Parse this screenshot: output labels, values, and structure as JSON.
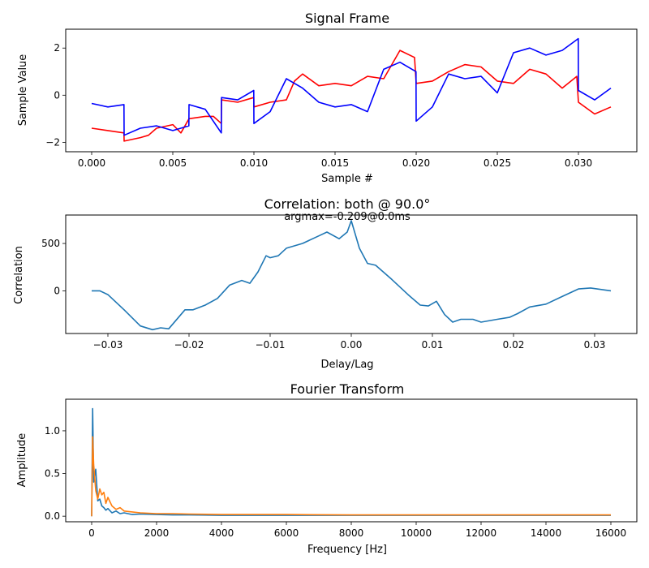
{
  "chart_data": [
    {
      "type": "line",
      "title": "Signal Frame",
      "xlabel": "Sample #",
      "ylabel": "Sample Value",
      "xlim": [
        -0.0016,
        0.0336
      ],
      "ylim": [
        -2.4,
        2.8
      ],
      "xticks": [
        0.0,
        0.005,
        0.01,
        0.015,
        0.02,
        0.025,
        0.03
      ],
      "xtick_labels": [
        "0.000",
        "0.005",
        "0.010",
        "0.015",
        "0.020",
        "0.025",
        "0.030"
      ],
      "yticks": [
        -2,
        0,
        2
      ],
      "ytick_labels": [
        "−2",
        "0",
        "2"
      ],
      "grid": false,
      "series": [
        {
          "color": "#ff0000",
          "x": [
            0.0,
            0.001,
            0.00199,
            0.002,
            0.003,
            0.0035,
            0.004,
            0.005,
            0.0055,
            0.006,
            0.007,
            0.0075,
            0.00799,
            0.008,
            0.009,
            0.00999,
            0.01,
            0.011,
            0.012,
            0.0125,
            0.013,
            0.014,
            0.015,
            0.016,
            0.017,
            0.018,
            0.019,
            0.0199,
            0.02,
            0.021,
            0.022,
            0.023,
            0.024,
            0.025,
            0.026,
            0.027,
            0.028,
            0.029,
            0.0299,
            0.03,
            0.031,
            0.032
          ],
          "y": [
            -1.4,
            -1.5,
            -1.6,
            -1.95,
            -1.8,
            -1.7,
            -1.4,
            -1.25,
            -1.6,
            -1.0,
            -0.9,
            -0.9,
            -1.2,
            -0.2,
            -0.3,
            -0.1,
            -0.5,
            -0.3,
            -0.2,
            0.6,
            0.9,
            0.4,
            0.5,
            0.4,
            0.8,
            0.7,
            1.9,
            1.6,
            0.5,
            0.6,
            1.0,
            1.3,
            1.2,
            0.6,
            0.5,
            1.1,
            0.9,
            0.3,
            0.8,
            -0.3,
            -0.8,
            -0.5
          ]
        },
        {
          "color": "#0000ff",
          "x": [
            0.0,
            0.001,
            0.00199,
            0.002,
            0.003,
            0.004,
            0.005,
            0.00599,
            0.006,
            0.007,
            0.00799,
            0.008,
            0.009,
            0.00999,
            0.01,
            0.011,
            0.012,
            0.013,
            0.014,
            0.015,
            0.016,
            0.017,
            0.018,
            0.019,
            0.01999,
            0.02,
            0.021,
            0.022,
            0.023,
            0.024,
            0.025,
            0.026,
            0.027,
            0.028,
            0.029,
            0.02999,
            0.03,
            0.031,
            0.032
          ],
          "y": [
            -0.35,
            -0.5,
            -0.4,
            -1.7,
            -1.4,
            -1.3,
            -1.5,
            -1.3,
            -0.4,
            -0.6,
            -1.6,
            -0.1,
            -0.2,
            0.2,
            -1.2,
            -0.7,
            0.7,
            0.3,
            -0.3,
            -0.5,
            -0.4,
            -0.7,
            1.1,
            1.4,
            1.0,
            -1.1,
            -0.5,
            0.9,
            0.7,
            0.8,
            0.1,
            1.8,
            2.0,
            1.7,
            1.9,
            2.4,
            0.2,
            -0.2,
            0.3
          ]
        }
      ]
    },
    {
      "type": "line",
      "title": "Correlation: both @ 90.0°",
      "annotation": "argmax=-0.209@0.0ms",
      "xlabel": "Delay/Lag",
      "ylabel": "Correlation",
      "xlim": [
        -0.0352,
        0.0352
      ],
      "ylim": [
        -450,
        800
      ],
      "xticks": [
        -0.03,
        -0.02,
        -0.01,
        0.0,
        0.01,
        0.02,
        0.03
      ],
      "xtick_labels": [
        "−0.03",
        "−0.02",
        "−0.01",
        "0.00",
        "0.01",
        "0.02",
        "0.03"
      ],
      "yticks": [
        0,
        500
      ],
      "ytick_labels": [
        "0",
        "500"
      ],
      "grid": false,
      "series": [
        {
          "color": "#1f77b4",
          "x": [
            -0.032,
            -0.031,
            -0.03,
            -0.028,
            -0.026,
            -0.0245,
            -0.0235,
            -0.0225,
            -0.0205,
            -0.0195,
            -0.018,
            -0.0165,
            -0.015,
            -0.0135,
            -0.0125,
            -0.0115,
            -0.0105,
            -0.01,
            -0.009,
            -0.008,
            -0.006,
            -0.004,
            -0.003,
            -0.0015,
            -0.0005,
            0.0,
            0.001,
            0.002,
            0.003,
            0.005,
            0.007,
            0.0085,
            0.0095,
            0.0105,
            0.0115,
            0.0125,
            0.0135,
            0.015,
            0.016,
            0.018,
            0.0195,
            0.0205,
            0.022,
            0.024,
            0.026,
            0.028,
            0.0295,
            0.032
          ],
          "y": [
            0,
            0,
            -40,
            -200,
            -370,
            -410,
            -390,
            -400,
            -200,
            -200,
            -150,
            -80,
            60,
            110,
            80,
            200,
            370,
            350,
            370,
            450,
            500,
            580,
            620,
            550,
            620,
            740,
            450,
            290,
            270,
            120,
            -40,
            -150,
            -160,
            -110,
            -250,
            -330,
            -300,
            -300,
            -330,
            -300,
            -280,
            -240,
            -170,
            -140,
            -60,
            20,
            30,
            0
          ]
        }
      ]
    },
    {
      "type": "line",
      "title": "Fourier Transform",
      "xlabel": "Frequency [Hz]",
      "ylabel": "Amplitude",
      "xlim": [
        -800,
        16800
      ],
      "ylim": [
        -0.065,
        1.37
      ],
      "xticks": [
        0,
        2000,
        4000,
        6000,
        8000,
        10000,
        12000,
        14000,
        16000
      ],
      "xtick_labels": [
        "0",
        "2000",
        "4000",
        "6000",
        "8000",
        "10000",
        "12000",
        "14000",
        "16000"
      ],
      "yticks": [
        0.0,
        0.5,
        1.0
      ],
      "ytick_labels": [
        "0.0",
        "0.5",
        "1.0"
      ],
      "grid": false,
      "series": [
        {
          "color": "#1f77b4",
          "x": [
            0,
            31,
            62,
            125,
            187,
            250,
            312,
            375,
            437,
            500,
            625,
            750,
            875,
            1000,
            1250,
            1500,
            2000,
            2500,
            3000,
            4000,
            6000,
            8000,
            10000,
            12000,
            14000,
            16000
          ],
          "y": [
            0.0,
            1.26,
            0.4,
            0.55,
            0.18,
            0.2,
            0.12,
            0.1,
            0.07,
            0.09,
            0.04,
            0.06,
            0.03,
            0.04,
            0.02,
            0.025,
            0.02,
            0.015,
            0.015,
            0.01,
            0.01,
            0.01,
            0.01,
            0.01,
            0.01,
            0.01
          ]
        },
        {
          "color": "#ff7f0e",
          "x": [
            0,
            31,
            62,
            125,
            187,
            250,
            312,
            375,
            437,
            500,
            625,
            750,
            875,
            1000,
            1250,
            1500,
            2000,
            2500,
            3000,
            4000,
            6000,
            8000,
            10000,
            12000,
            14000,
            16000
          ],
          "y": [
            0.0,
            0.93,
            0.6,
            0.3,
            0.2,
            0.32,
            0.25,
            0.28,
            0.15,
            0.22,
            0.12,
            0.08,
            0.1,
            0.06,
            0.05,
            0.04,
            0.03,
            0.03,
            0.025,
            0.02,
            0.02,
            0.015,
            0.015,
            0.015,
            0.015,
            0.015
          ]
        }
      ]
    }
  ]
}
